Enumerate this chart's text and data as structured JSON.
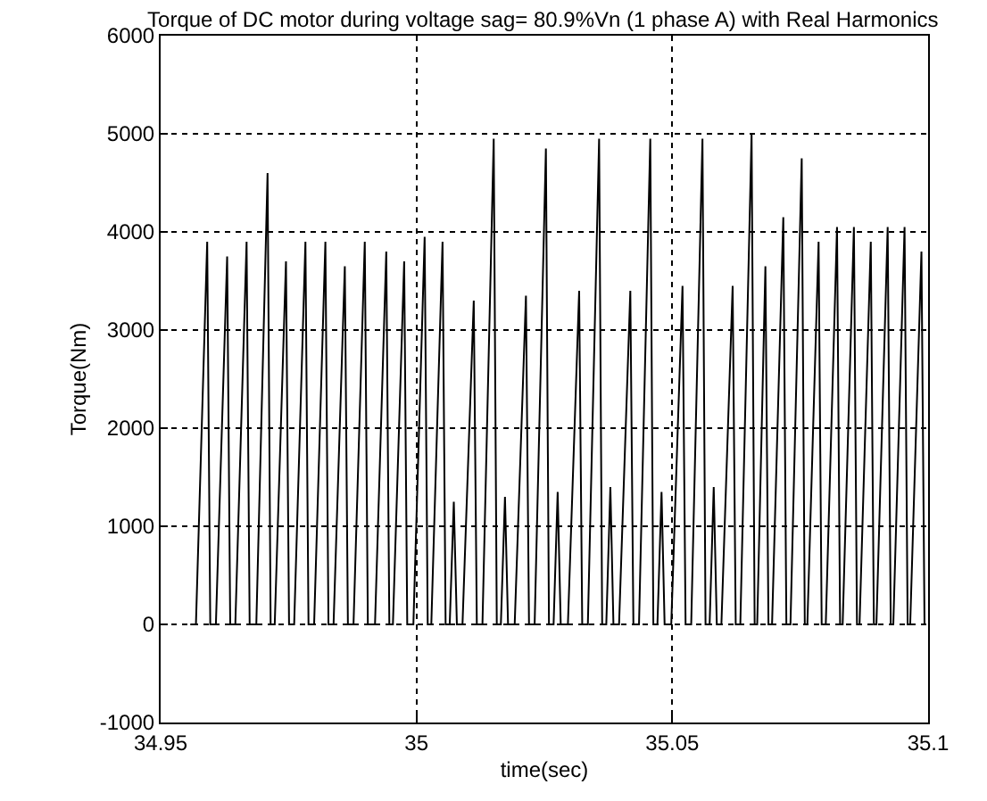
{
  "chart_data": {
    "type": "line",
    "title": "Torque of DC motor during voltage sag= 80.9%Vn (1 phase A) with Real Harmonics",
    "xlabel": "time(sec)",
    "ylabel": "Torque(Nm)",
    "x": [
      34.9558,
      34.9569,
      34.9591,
      34.9597,
      34.9608,
      34.963,
      34.9636,
      34.9646,
      34.9668,
      34.9674,
      34.9687,
      34.9709,
      34.9715,
      34.9723,
      34.9745,
      34.9751,
      34.9761,
      34.9783,
      34.9789,
      34.98,
      34.9822,
      34.9828,
      34.9838,
      34.986,
      34.9866,
      34.9877,
      34.9899,
      34.9905,
      34.9919,
      34.9941,
      34.9947,
      34.9954,
      34.9976,
      34.9982,
      34.9994,
      35.0016,
      35.0022,
      35.0029,
      35.0051,
      35.0057,
      35.0065,
      35.0073,
      35.0079,
      35.009,
      35.0112,
      35.0118,
      35.0129,
      35.0151,
      35.0157,
      35.0165,
      35.0173,
      35.0179,
      35.0192,
      35.0214,
      35.022,
      35.0231,
      35.0253,
      35.0259,
      35.0268,
      35.0276,
      35.0282,
      35.0296,
      35.0318,
      35.0324,
      35.0335,
      35.0357,
      35.0363,
      35.0371,
      35.0379,
      35.0385,
      35.0396,
      35.0418,
      35.0424,
      35.0435,
      35.0457,
      35.0463,
      35.0471,
      35.0479,
      35.0485,
      35.0498,
      35.052,
      35.0526,
      35.0537,
      35.0559,
      35.0565,
      35.0573,
      35.0581,
      35.0587,
      35.0596,
      35.0618,
      35.0624,
      35.0633,
      35.0655,
      35.0661,
      35.0666,
      35.0682,
      35.0688,
      35.0695,
      35.0717,
      35.0723,
      35.0731,
      35.0753,
      35.0759,
      35.0764,
      35.0786,
      35.0792,
      35.08,
      35.0822,
      35.0828,
      35.0833,
      35.0855,
      35.0861,
      35.0866,
      35.0888,
      35.0894,
      35.0899,
      35.0921,
      35.0927,
      35.0932,
      35.0954,
      35.096,
      35.0965,
      35.0987,
      35.0993
    ],
    "series": [
      {
        "color": "#000000",
        "values": [
          0,
          0,
          3900,
          0,
          0,
          3750,
          0,
          0,
          3900,
          0,
          0,
          4600,
          0,
          0,
          3700,
          0,
          0,
          3900,
          0,
          0,
          3900,
          0,
          0,
          3650,
          0,
          0,
          3900,
          0,
          0,
          3800,
          0,
          0,
          3700,
          0,
          0,
          3950,
          0,
          0,
          3900,
          0,
          0,
          1250,
          0,
          0,
          3300,
          0,
          0,
          4950,
          0,
          0,
          1300,
          0,
          0,
          3350,
          0,
          0,
          4850,
          0,
          0,
          1350,
          0,
          0,
          3400,
          0,
          0,
          4950,
          0,
          0,
          1400,
          0,
          0,
          3400,
          0,
          0,
          4950,
          0,
          0,
          1350,
          0,
          0,
          3450,
          0,
          0,
          4950,
          0,
          0,
          1400,
          0,
          0,
          3450,
          0,
          0,
          5000,
          0,
          0,
          3650,
          0,
          0,
          4150,
          0,
          0,
          4750,
          0,
          0,
          3900,
          0,
          0,
          4050,
          0,
          0,
          4050,
          0,
          0,
          3900,
          0,
          0,
          4050,
          0,
          0,
          4050,
          0,
          0,
          3800,
          0
        ]
      }
    ],
    "xlim": [
      34.95,
      35.1
    ],
    "xticks": [
      34.95,
      35,
      35.05,
      35.1
    ],
    "ylim": [
      -1000,
      6000
    ],
    "yticks": [
      -1000,
      0,
      1000,
      2000,
      3000,
      4000,
      5000,
      6000
    ],
    "grid": true,
    "marker": "none",
    "line_style": "solid"
  }
}
